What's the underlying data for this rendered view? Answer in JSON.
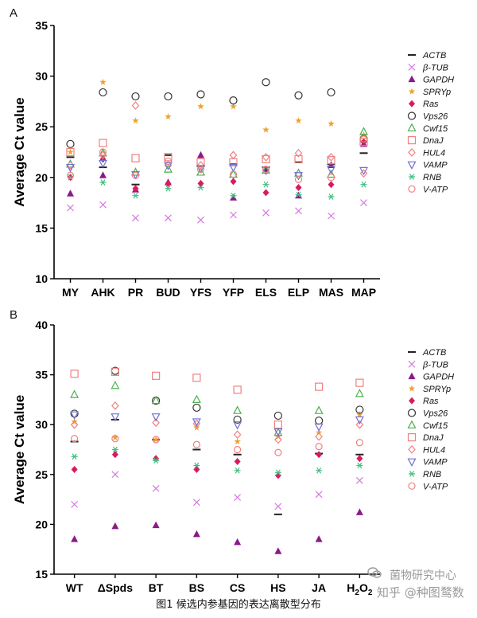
{
  "caption": "图1 候选内参基因的表达离散型分布",
  "watermark": {
    "line1": "菌物研究中心",
    "line2": "知乎 @种图鹜数"
  },
  "legend_entries": [
    {
      "name": "ACTB",
      "marker": "dash",
      "color": "#222222"
    },
    {
      "name": "β-TUB",
      "marker": "x",
      "color": "#d67ae0"
    },
    {
      "name": "GAPDH",
      "marker": "tri",
      "color": "#8a1a8a"
    },
    {
      "name": "SPRYp",
      "marker": "star",
      "color": "#f0a030"
    },
    {
      "name": "Ras",
      "marker": "diamond",
      "color": "#d81b60"
    },
    {
      "name": "Vps26",
      "marker": "circle",
      "color": "#333333"
    },
    {
      "name": "Cwf15",
      "marker": "triopen",
      "color": "#4caf50"
    },
    {
      "name": "DnaJ",
      "marker": "square",
      "color": "#f08080"
    },
    {
      "name": "HUL4",
      "marker": "diamondopen",
      "color": "#f08080"
    },
    {
      "name": "VAMP",
      "marker": "invtri",
      "color": "#7070d0"
    },
    {
      "name": "RNB",
      "marker": "asterisk",
      "color": "#3fbf7f"
    },
    {
      "name": "V-ATP",
      "marker": "circlepink",
      "color": "#f08080"
    }
  ],
  "chart_data": [
    {
      "panel_label": "A",
      "type": "scatter",
      "ylabel": "Average Ct value",
      "ylim": [
        10,
        35
      ],
      "yticks": [
        10,
        15,
        20,
        25,
        30,
        35
      ],
      "categories": [
        "MY",
        "AHK",
        "PR",
        "BUD",
        "YFS",
        "YFP",
        "ELS",
        "ELP",
        "MAS",
        "MAP"
      ],
      "series": [
        {
          "name": "ACTB",
          "values": [
            22.0,
            21.0,
            19.3,
            22.2,
            21.1,
            21.3,
            21.0,
            21.5,
            21.3,
            22.4
          ]
        },
        {
          "name": "β-TUB",
          "values": [
            17.0,
            17.3,
            16.0,
            16.0,
            15.8,
            16.3,
            16.5,
            16.7,
            16.2,
            17.5
          ]
        },
        {
          "name": "GAPDH",
          "values": [
            18.4,
            20.2,
            18.8,
            19.5,
            22.2,
            18.0,
            20.8,
            18.2,
            21.2,
            23.3
          ]
        },
        {
          "name": "SPRYp",
          "values": [
            22.5,
            29.4,
            25.6,
            26.0,
            27.0,
            27.0,
            24.7,
            25.6,
            25.3,
            24.2
          ]
        },
        {
          "name": "Ras",
          "values": [
            20.0,
            21.8,
            18.9,
            19.4,
            19.4,
            19.6,
            18.5,
            19.0,
            19.3,
            23.5
          ]
        },
        {
          "name": "Vps26",
          "values": [
            23.3,
            28.4,
            28.0,
            28.0,
            28.2,
            27.6,
            29.4,
            28.1,
            28.4,
            23.8
          ]
        },
        {
          "name": "Cwf15",
          "values": [
            21.3,
            22.4,
            20.5,
            20.8,
            20.5,
            20.3,
            20.7,
            20.4,
            20.3,
            24.5
          ]
        },
        {
          "name": "DnaJ",
          "values": [
            22.5,
            23.4,
            21.9,
            22.0,
            21.5,
            21.5,
            21.8,
            21.8,
            21.7,
            23.5
          ]
        },
        {
          "name": "HUL4",
          "values": [
            21.2,
            22.2,
            27.1,
            21.2,
            21.2,
            22.2,
            22.0,
            22.4,
            22.0,
            20.4
          ]
        },
        {
          "name": "VAMP",
          "values": [
            21.0,
            21.4,
            20.3,
            21.2,
            20.9,
            21.0,
            20.7,
            20.2,
            20.8,
            20.7
          ]
        },
        {
          "name": "RNB",
          "values": [
            20.0,
            19.5,
            18.2,
            18.9,
            19.0,
            18.2,
            19.3,
            18.3,
            18.1,
            19.3
          ]
        },
        {
          "name": "V-ATP",
          "values": [
            20.2,
            22.5,
            20.2,
            21.6,
            20.8,
            20.3,
            20.8,
            19.8,
            20.0,
            23.8
          ]
        }
      ]
    },
    {
      "panel_label": "B",
      "type": "scatter",
      "ylabel": "Average Ct value",
      "ylim": [
        15,
        40
      ],
      "yticks": [
        15,
        20,
        25,
        30,
        35,
        40
      ],
      "categories": [
        "WT",
        "ΔSpds",
        "BT",
        "BS",
        "CS",
        "HS",
        "JA",
        "H2O2"
      ],
      "series": [
        {
          "name": "ACTB",
          "values": [
            28.3,
            30.5,
            28.5,
            27.5,
            27.0,
            21.0,
            27.1,
            27.0
          ]
        },
        {
          "name": "β-TUB",
          "values": [
            22.0,
            25.0,
            23.6,
            22.2,
            22.7,
            21.8,
            23.0,
            24.4
          ]
        },
        {
          "name": "GAPDH",
          "values": [
            18.5,
            19.8,
            19.9,
            19.0,
            18.2,
            17.3,
            18.5,
            21.2
          ]
        },
        {
          "name": "SPRYp",
          "values": [
            30.3,
            28.7,
            28.5,
            29.7,
            28.3,
            28.8,
            29.2,
            31.0
          ]
        },
        {
          "name": "Ras",
          "values": [
            25.5,
            27.0,
            26.6,
            25.5,
            26.3,
            24.9,
            27.0,
            26.6
          ]
        },
        {
          "name": "Vps26",
          "values": [
            31.1,
            35.4,
            32.4,
            31.7,
            30.5,
            30.9,
            30.4,
            31.5
          ]
        },
        {
          "name": "Cwf15",
          "values": [
            33.0,
            33.9,
            32.4,
            32.5,
            31.4,
            29.2,
            31.4,
            33.1
          ]
        },
        {
          "name": "DnaJ",
          "values": [
            35.1,
            35.3,
            34.9,
            34.7,
            33.5,
            30.0,
            33.8,
            34.2
          ]
        },
        {
          "name": "HUL4",
          "values": [
            30.0,
            31.9,
            30.2,
            30.1,
            29.0,
            28.5,
            28.8,
            30.0
          ]
        },
        {
          "name": "VAMP",
          "values": [
            31.0,
            30.8,
            30.8,
            30.3,
            30.0,
            29.3,
            29.8,
            30.5
          ]
        },
        {
          "name": "RNB",
          "values": [
            26.8,
            27.5,
            26.4,
            25.9,
            25.4,
            25.2,
            25.4,
            25.9
          ]
        },
        {
          "name": "V-ATP",
          "values": [
            28.6,
            28.6,
            28.5,
            28.0,
            27.5,
            27.2,
            27.8,
            28.2
          ]
        }
      ]
    }
  ]
}
